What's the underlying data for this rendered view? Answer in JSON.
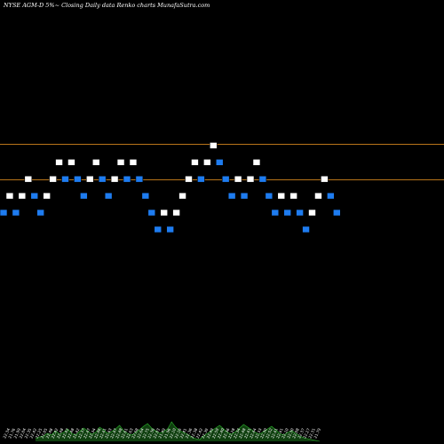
{
  "chart_data": {
    "type": "renko",
    "title": "NYSE AGM-D 5%~   Closing Daily data  Renko  charts MunafaSutra.com",
    "reference_levels": [
      22.62,
      22.43
    ],
    "y_domain": [
      21.2,
      23.2
    ],
    "bricks": [
      {
        "dir": "down",
        "close": 22.25
      },
      {
        "dir": "up",
        "close": 22.34
      },
      {
        "dir": "down",
        "close": 22.25
      },
      {
        "dir": "up",
        "close": 22.34
      },
      {
        "dir": "up",
        "close": 22.43
      },
      {
        "dir": "down",
        "close": 22.34
      },
      {
        "dir": "down",
        "close": 22.25
      },
      {
        "dir": "up",
        "close": 22.34
      },
      {
        "dir": "up",
        "close": 22.43
      },
      {
        "dir": "up",
        "close": 22.52
      },
      {
        "dir": "down",
        "close": 22.43
      },
      {
        "dir": "up",
        "close": 22.52
      },
      {
        "dir": "down",
        "close": 22.43
      },
      {
        "dir": "down",
        "close": 22.34
      },
      {
        "dir": "up",
        "close": 22.43
      },
      {
        "dir": "up",
        "close": 22.52
      },
      {
        "dir": "down",
        "close": 22.43
      },
      {
        "dir": "down",
        "close": 22.34
      },
      {
        "dir": "up",
        "close": 22.43
      },
      {
        "dir": "up",
        "close": 22.52
      },
      {
        "dir": "down",
        "close": 22.43
      },
      {
        "dir": "up",
        "close": 22.52
      },
      {
        "dir": "down",
        "close": 22.43
      },
      {
        "dir": "down",
        "close": 22.34
      },
      {
        "dir": "down",
        "close": 22.25
      },
      {
        "dir": "down",
        "close": 22.16
      },
      {
        "dir": "up",
        "close": 22.25
      },
      {
        "dir": "down",
        "close": 22.16
      },
      {
        "dir": "up",
        "close": 22.25
      },
      {
        "dir": "up",
        "close": 22.34
      },
      {
        "dir": "up",
        "close": 22.43
      },
      {
        "dir": "up",
        "close": 22.52
      },
      {
        "dir": "down",
        "close": 22.43
      },
      {
        "dir": "up",
        "close": 22.52
      },
      {
        "dir": "up",
        "close": 22.61
      },
      {
        "dir": "down",
        "close": 22.52
      },
      {
        "dir": "down",
        "close": 22.43
      },
      {
        "dir": "down",
        "close": 22.34
      },
      {
        "dir": "up",
        "close": 22.43
      },
      {
        "dir": "down",
        "close": 22.34
      },
      {
        "dir": "up",
        "close": 22.43
      },
      {
        "dir": "up",
        "close": 22.52
      },
      {
        "dir": "down",
        "close": 22.43
      },
      {
        "dir": "down",
        "close": 22.34
      },
      {
        "dir": "down",
        "close": 22.25
      },
      {
        "dir": "up",
        "close": 22.34
      },
      {
        "dir": "down",
        "close": 22.25
      },
      {
        "dir": "up",
        "close": 22.34
      },
      {
        "dir": "down",
        "close": 22.25
      },
      {
        "dir": "down",
        "close": 22.16
      },
      {
        "dir": "up",
        "close": 22.25
      },
      {
        "dir": "up",
        "close": 22.34
      },
      {
        "dir": "up",
        "close": 22.43
      },
      {
        "dir": "down",
        "close": 22.34
      },
      {
        "dir": "down",
        "close": 22.25
      }
    ],
    "x_tick_labels": [
      "22.34",
      "21.76",
      "21.99",
      "22.04",
      "22.35",
      "22.42",
      "22.25",
      "22.05",
      "22.48",
      "22.42",
      "22.48",
      "22.42",
      "22.48",
      "22.42",
      "22.37",
      "22.47",
      "22.34",
      "22.46",
      "22.41",
      "22.43",
      "22.47",
      "22.48",
      "22.61",
      "22.63",
      "22.68",
      "22.64",
      "22.75",
      "22.36",
      "22.03",
      "21.49",
      "21.96",
      "22.10",
      "22.16",
      "22.41",
      "22.36",
      "22.38",
      "22.42",
      "22.39",
      "22.49",
      "22.59",
      "22.40",
      "22.36",
      "22.28",
      "22.34",
      "22.48",
      "22.41",
      "22.44",
      "22.33",
      "22.30",
      "22.52",
      "22.41",
      "22.41",
      "22.10",
      "22.30",
      "22.08",
      "22.37",
      "22.27",
      "22.31",
      "21.79"
    ],
    "volume": [
      3,
      5,
      6,
      9,
      7,
      12,
      8,
      10,
      14,
      9,
      7,
      11,
      15,
      12,
      8,
      10,
      16,
      13,
      9,
      11,
      14,
      18,
      12,
      9,
      7,
      10,
      13,
      17,
      20,
      15,
      12,
      9,
      11,
      14,
      22,
      16,
      12,
      10,
      8,
      5,
      3,
      2,
      6,
      9,
      12,
      15,
      18,
      14,
      10,
      8,
      11,
      15,
      19,
      16,
      13,
      10,
      8,
      11,
      14,
      17,
      13,
      9,
      7,
      10,
      12,
      9,
      6,
      4,
      3,
      2,
      1,
      0
    ]
  }
}
